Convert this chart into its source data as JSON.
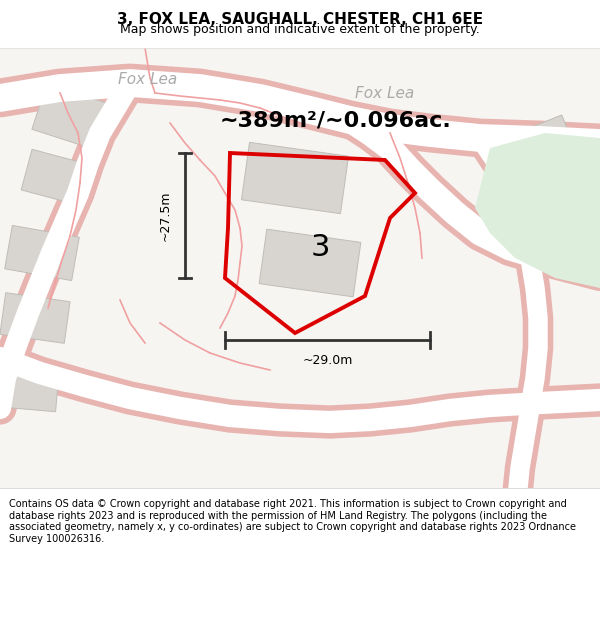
{
  "title": "3, FOX LEA, SAUGHALL, CHESTER, CH1 6EE",
  "subtitle": "Map shows position and indicative extent of the property.",
  "footer": "Contains OS data © Crown copyright and database right 2021. This information is subject to Crown copyright and database rights 2023 and is reproduced with the permission of HM Land Registry. The polygons (including the associated geometry, namely x, y co-ordinates) are subject to Crown copyright and database rights 2023 Ordnance Survey 100026316.",
  "area_label": "~389m²/~0.096ac.",
  "number_label": "3",
  "width_label": "~29.0m",
  "height_label": "~27.5m",
  "map_bg": "#f7f5f2",
  "road_outline_color": "#e8b4b0",
  "road_fill_color": "#ffffff",
  "building_color": "#d8d5d0",
  "building_edge_color": "#c0bdb8",
  "green_color": "#ddeedd",
  "plot_edge_color": "#dd0000",
  "dim_line_color": "#333333",
  "street_label_color": "#aaaaaa",
  "title_fontsize": 11,
  "subtitle_fontsize": 9,
  "footer_fontsize": 7,
  "area_fontsize": 16,
  "number_fontsize": 22,
  "dim_fontsize": 9,
  "street_fontsize": 11
}
